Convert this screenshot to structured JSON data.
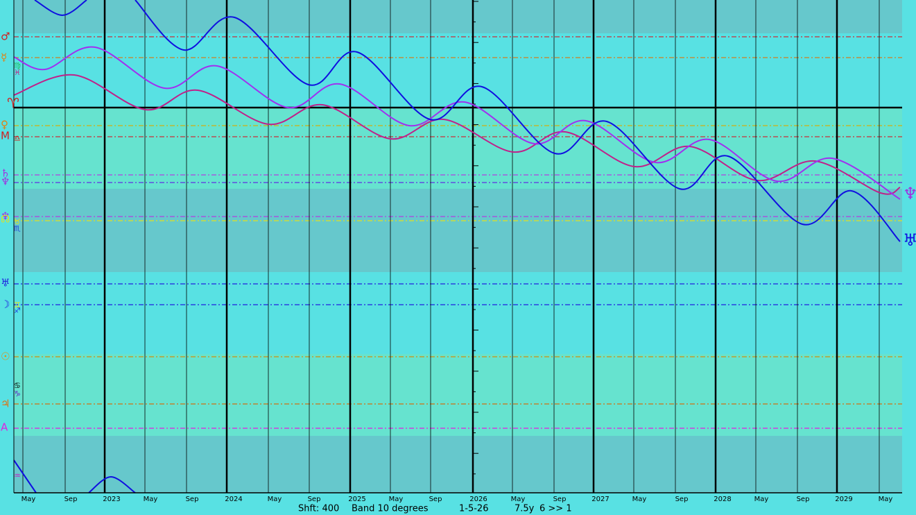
{
  "x_axis_labels": [
    "May",
    "Sep",
    "2023",
    "May",
    "Sep",
    "2024",
    "May",
    "Sep",
    "2025",
    "May",
    "Sep",
    "2026",
    "May",
    "Sep",
    "2027",
    "May",
    "Sep",
    "2028",
    "May",
    "Sep",
    "2029",
    "May"
  ],
  "left_glyphs": [
    "♂",
    "☿",
    "♈",
    "♀",
    "M",
    "♄",
    "♆",
    "♆",
    "☊",
    "♅",
    "☽",
    "☉",
    "♃",
    "A"
  ],
  "sign_glyphs": [
    "♍",
    "♓",
    "♎",
    "♉",
    "♏",
    "♊",
    "♐",
    "♋",
    "♑",
    "♒"
  ],
  "right_glyphs": [
    "♆",
    "♅"
  ],
  "footer": {
    "shift": "Shft: 400",
    "band": "Band 10 degrees",
    "date": "1-5-26",
    "span": "7.5y",
    "step": "6 >> 1"
  }
}
